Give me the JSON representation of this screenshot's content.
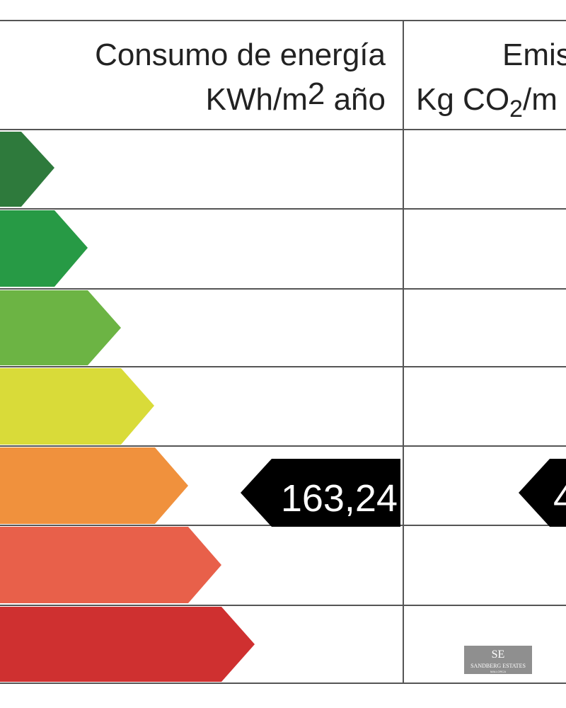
{
  "header": {
    "energy": {
      "line1": "Consumo de energía",
      "unit_main": "KWh/m",
      "unit_sup": "2",
      "unit_tail": " año"
    },
    "emissions": {
      "line1": "Emis",
      "unit_main": "Kg CO",
      "unit_sub": "2",
      "unit_tail": "/m"
    }
  },
  "ratings": {
    "energy_value": "163,24",
    "emissions_value": "4"
  },
  "watermark": {
    "logo": "SE",
    "name": "SANDBERG ESTATES",
    "place": "MALLORCA"
  }
}
